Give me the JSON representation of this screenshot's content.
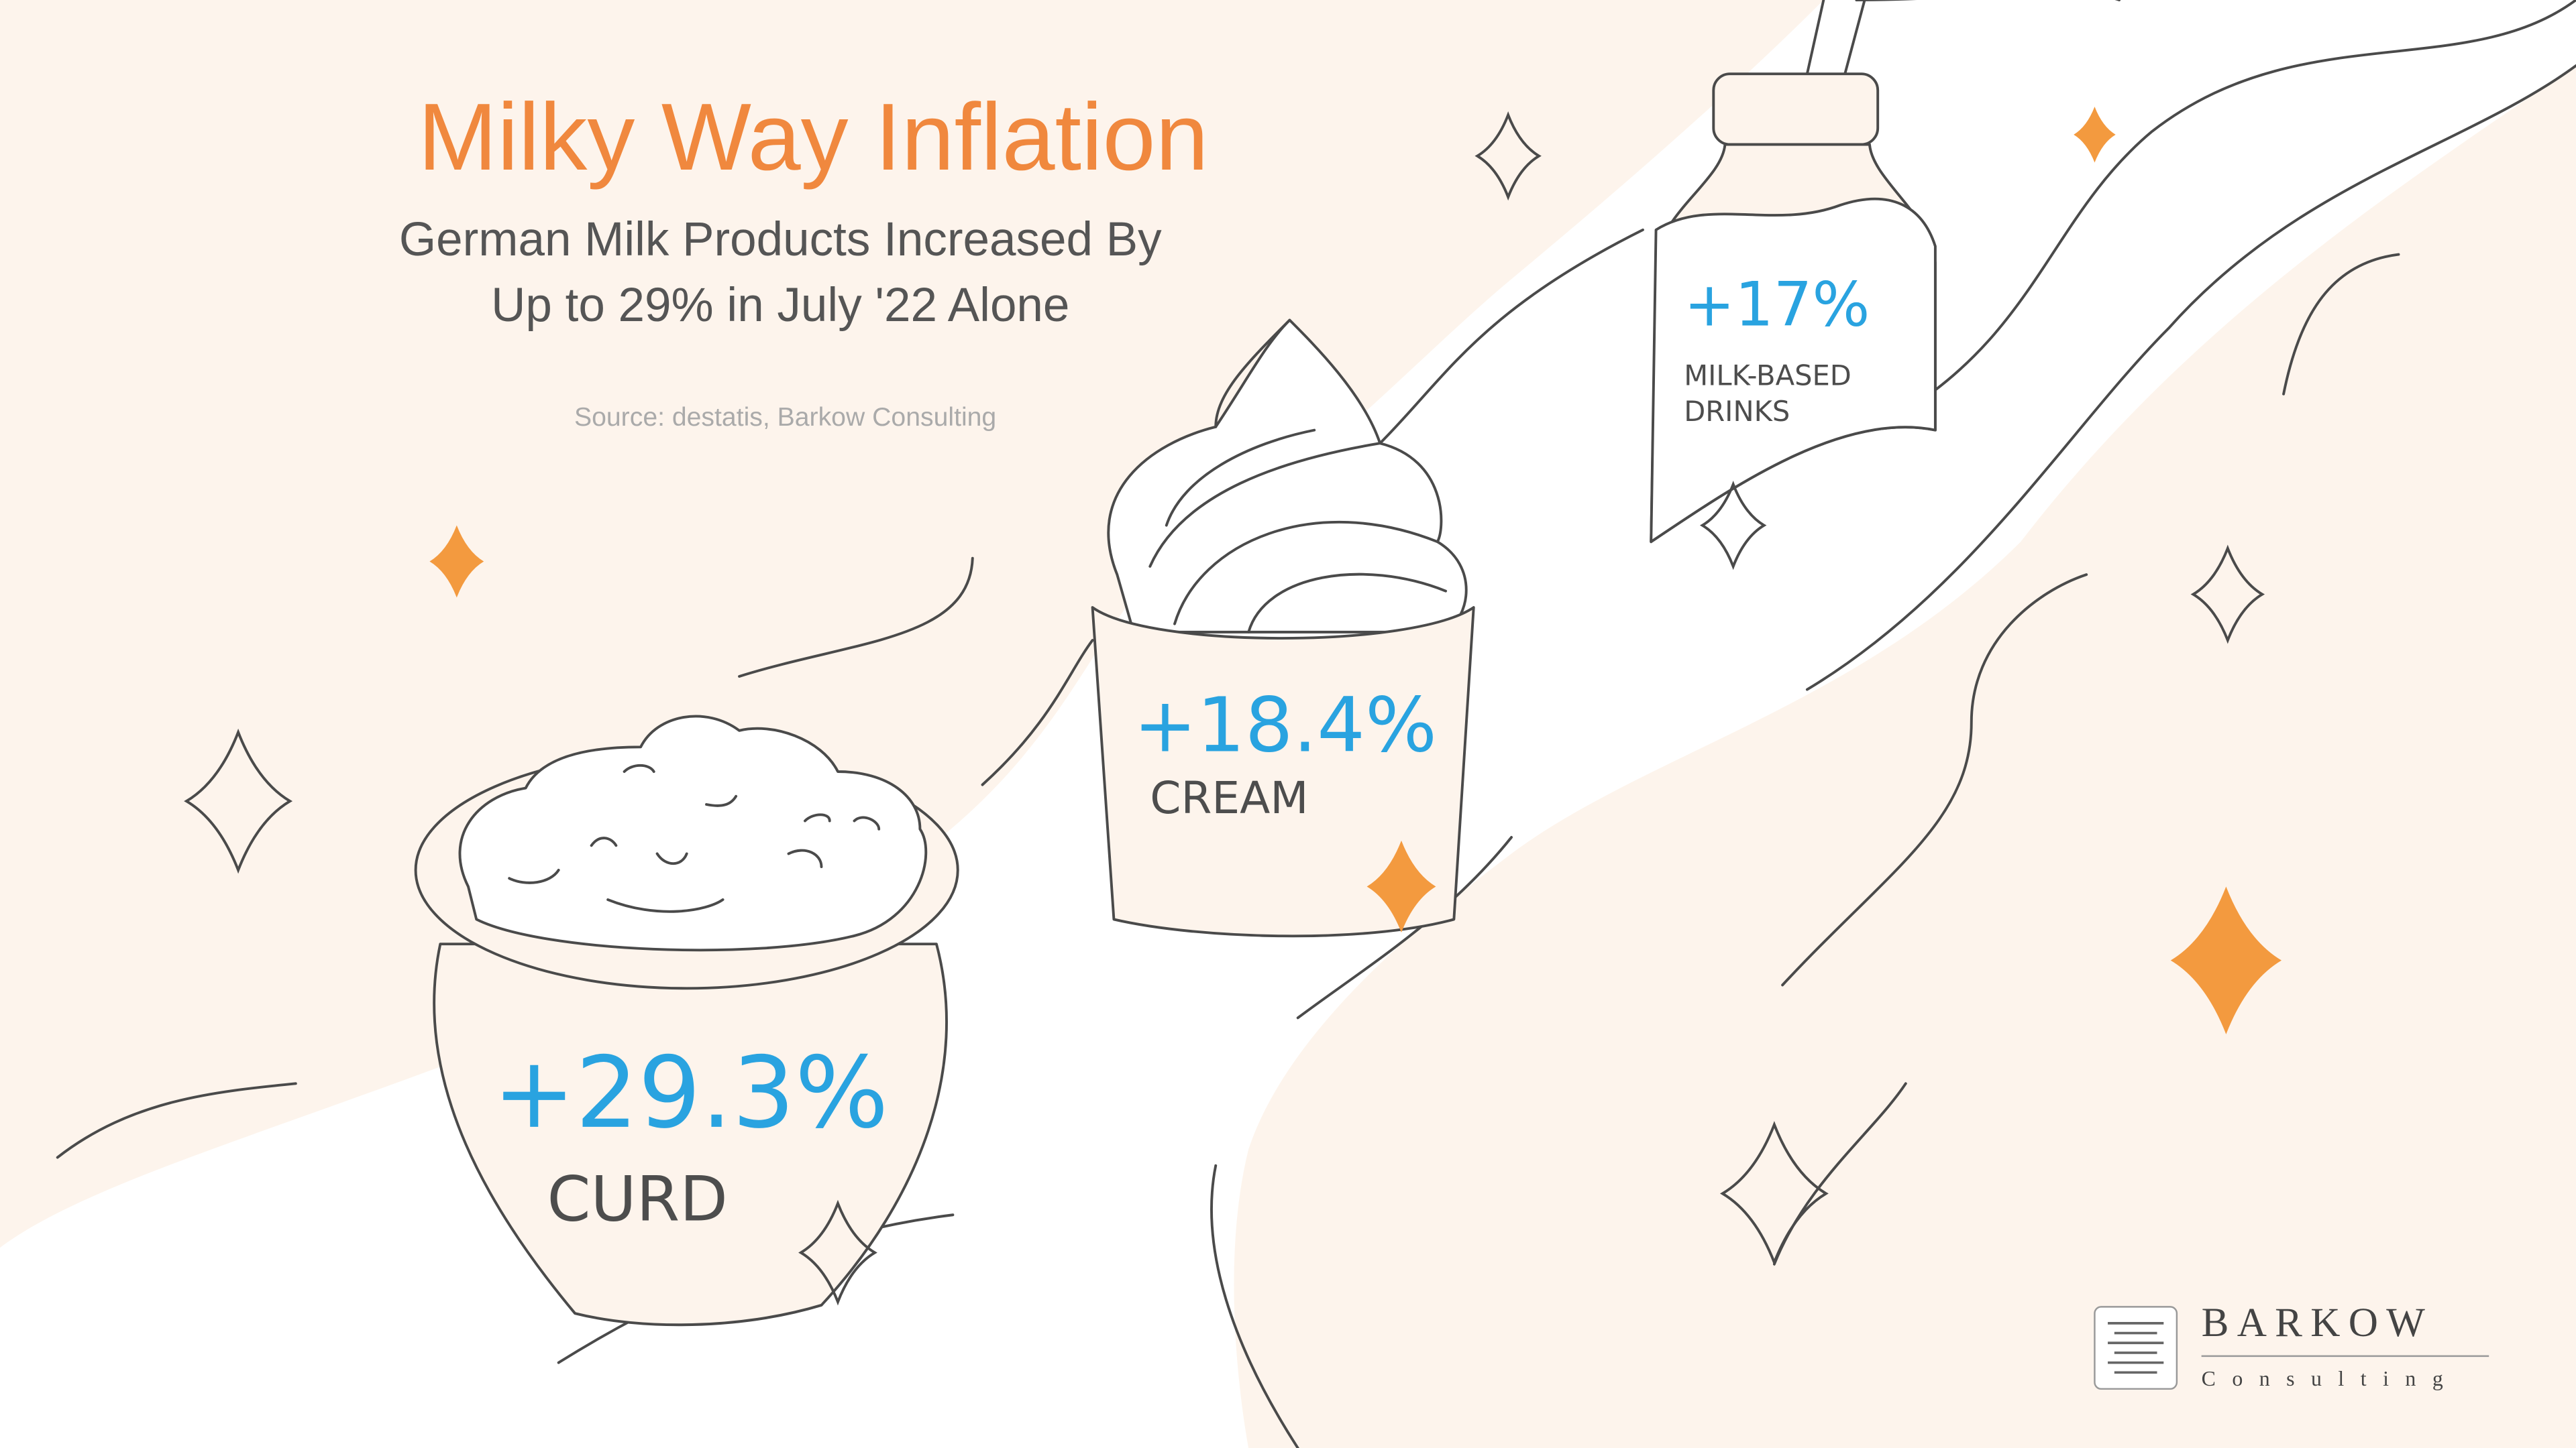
{
  "header": {
    "title": "Milky Way Inflation",
    "subtitle": [
      "German Milk Products Increased By",
      "Up to 29% in July '22 Alone"
    ],
    "source": "Source: destatis, Barkow Consulting"
  },
  "products": [
    {
      "value": "+29.3%",
      "label": "CURD"
    },
    {
      "value": "+18.4%",
      "label": "CREAM"
    },
    {
      "value": "+17%",
      "label": [
        "MILK-BASED",
        "DRINKS"
      ]
    }
  ],
  "logo": {
    "name": "BARKOW",
    "tagline": "Consulting"
  }
}
